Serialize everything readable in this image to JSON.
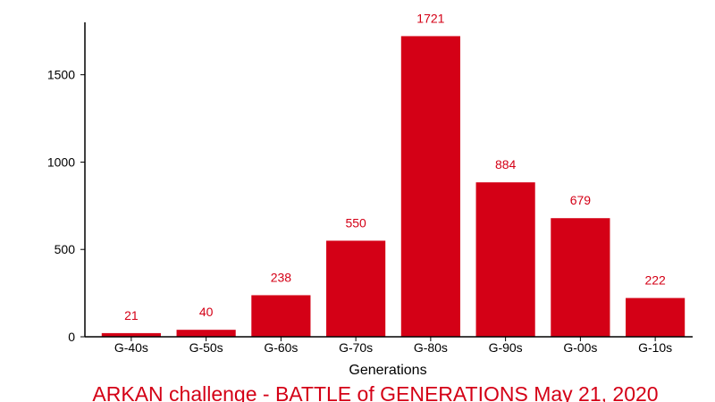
{
  "chart_data": {
    "type": "bar",
    "title": "ARKAN challenge - BATTLE of GENERATIONS May 21, 2020",
    "xlabel": "Generations",
    "ylabel": "",
    "categories": [
      "G-40s",
      "G-50s",
      "G-60s",
      "G-70s",
      "G-80s",
      "G-90s",
      "G-00s",
      "G-10s"
    ],
    "values": [
      21,
      40,
      238,
      550,
      1721,
      884,
      679,
      222
    ],
    "ylim": [
      0,
      1800
    ],
    "yticks": [
      0,
      500,
      1000,
      1500
    ],
    "grid": false,
    "legend": "none",
    "data_labels": true,
    "colors": {
      "bar": "#d40016",
      "data_label": "#d40016",
      "title": "#d40016",
      "axis": "#000000"
    }
  }
}
